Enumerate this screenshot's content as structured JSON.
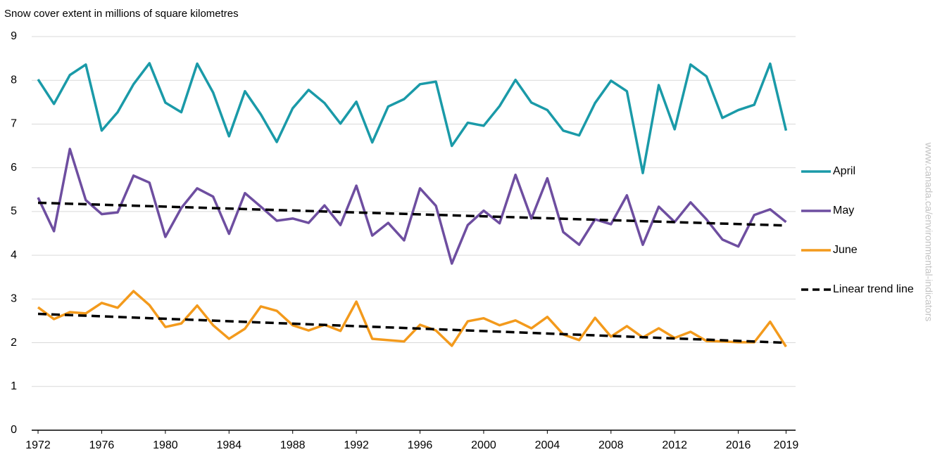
{
  "chart_data": {
    "type": "line",
    "title": "Snow cover extent in millions of square kilometres",
    "watermark": "www.canada.ca/environmental-indicators",
    "x": [
      1972,
      1973,
      1974,
      1975,
      1976,
      1977,
      1978,
      1979,
      1980,
      1981,
      1982,
      1983,
      1984,
      1985,
      1986,
      1987,
      1988,
      1989,
      1990,
      1991,
      1992,
      1993,
      1994,
      1995,
      1996,
      1997,
      1998,
      1999,
      2000,
      2001,
      2002,
      2003,
      2004,
      2005,
      2006,
      2007,
      2008,
      2009,
      2010,
      2011,
      2012,
      2013,
      2014,
      2015,
      2016,
      2017,
      2018,
      2019
    ],
    "series": [
      {
        "name": "April",
        "color": "#1a9aa8",
        "values": [
          8.02,
          7.46,
          8.12,
          8.36,
          6.85,
          7.27,
          7.91,
          8.39,
          7.49,
          7.27,
          8.38,
          7.72,
          6.72,
          7.75,
          7.22,
          6.59,
          7.36,
          7.78,
          7.48,
          7.01,
          7.51,
          6.58,
          7.4,
          7.57,
          7.91,
          7.97,
          6.5,
          7.03,
          6.96,
          7.41,
          8.01,
          7.49,
          7.32,
          6.85,
          6.74,
          7.48,
          7.99,
          7.75,
          5.88,
          7.89,
          6.88,
          8.36,
          8.09,
          7.14,
          7.32,
          7.44,
          8.38,
          6.85
        ]
      },
      {
        "name": "May",
        "color": "#6e4ea0",
        "values": [
          5.32,
          4.55,
          6.43,
          5.26,
          4.94,
          4.98,
          5.82,
          5.66,
          4.42,
          5.08,
          5.53,
          5.34,
          4.49,
          5.42,
          5.11,
          4.79,
          4.84,
          4.74,
          5.14,
          4.69,
          5.59,
          4.45,
          4.74,
          4.34,
          5.53,
          5.13,
          3.81,
          4.69,
          5.02,
          4.73,
          5.84,
          4.84,
          5.76,
          4.53,
          4.24,
          4.82,
          4.71,
          5.37,
          4.24,
          5.11,
          4.76,
          5.21,
          4.82,
          4.36,
          4.2,
          4.92,
          5.05,
          4.76
        ]
      },
      {
        "name": "June",
        "color": "#f39a1c",
        "values": [
          2.81,
          2.54,
          2.7,
          2.67,
          2.91,
          2.8,
          3.18,
          2.86,
          2.36,
          2.44,
          2.85,
          2.4,
          2.09,
          2.32,
          2.83,
          2.73,
          2.4,
          2.28,
          2.41,
          2.27,
          2.94,
          2.09,
          2.06,
          2.03,
          2.41,
          2.28,
          1.93,
          2.49,
          2.56,
          2.4,
          2.51,
          2.33,
          2.59,
          2.19,
          2.06,
          2.57,
          2.14,
          2.38,
          2.12,
          2.33,
          2.11,
          2.25,
          2.04,
          2.03,
          2.01,
          2.01,
          2.48,
          1.91
        ]
      }
    ],
    "trend": {
      "name": "Linear trend line",
      "color": "#000000",
      "lines": [
        {
          "x": [
            1972,
            2019
          ],
          "values": [
            5.2,
            4.68
          ]
        },
        {
          "x": [
            1972,
            2019
          ],
          "values": [
            2.66,
            2.0
          ]
        }
      ]
    },
    "xlim": [
      1971.6,
      2019.6
    ],
    "xticks": [
      1972,
      1976,
      1980,
      1984,
      1988,
      1992,
      1996,
      2000,
      2004,
      2008,
      2012,
      2016,
      2019
    ],
    "ylim": [
      0,
      9
    ],
    "yticks": [
      0,
      1,
      2,
      3,
      4,
      5,
      6,
      7,
      8,
      9
    ],
    "grid": true,
    "legend": "right"
  }
}
